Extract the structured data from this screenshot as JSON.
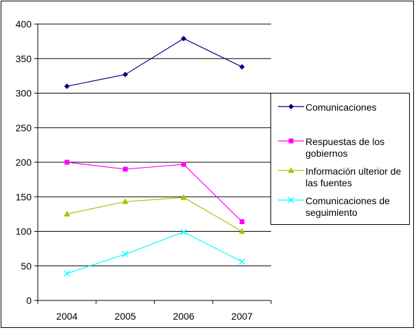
{
  "chart_data": {
    "type": "line",
    "categories": [
      "2004",
      "2005",
      "2006",
      "2007"
    ],
    "ylim": [
      0,
      400
    ],
    "yticks": [
      0,
      50,
      100,
      150,
      200,
      250,
      300,
      350,
      400
    ],
    "grid": true,
    "legend_position": "right",
    "series": [
      {
        "name": "Comunicaciones",
        "values": [
          310,
          327,
          379,
          338
        ],
        "color": "#000080",
        "marker": "diamond"
      },
      {
        "name": "Respuestas de los gobiernos",
        "values": [
          200,
          190,
          197,
          114
        ],
        "color": "#ff00ff",
        "marker": "square"
      },
      {
        "name": "Información ulterior de las fuentes",
        "values": [
          125,
          143,
          149,
          100
        ],
        "color": "#99cc00",
        "marker": "triangle"
      },
      {
        "name": "Comunicaciones de seguimiento",
        "values": [
          39,
          67,
          99,
          56
        ],
        "color": "#00ffff",
        "marker": "x"
      }
    ]
  }
}
